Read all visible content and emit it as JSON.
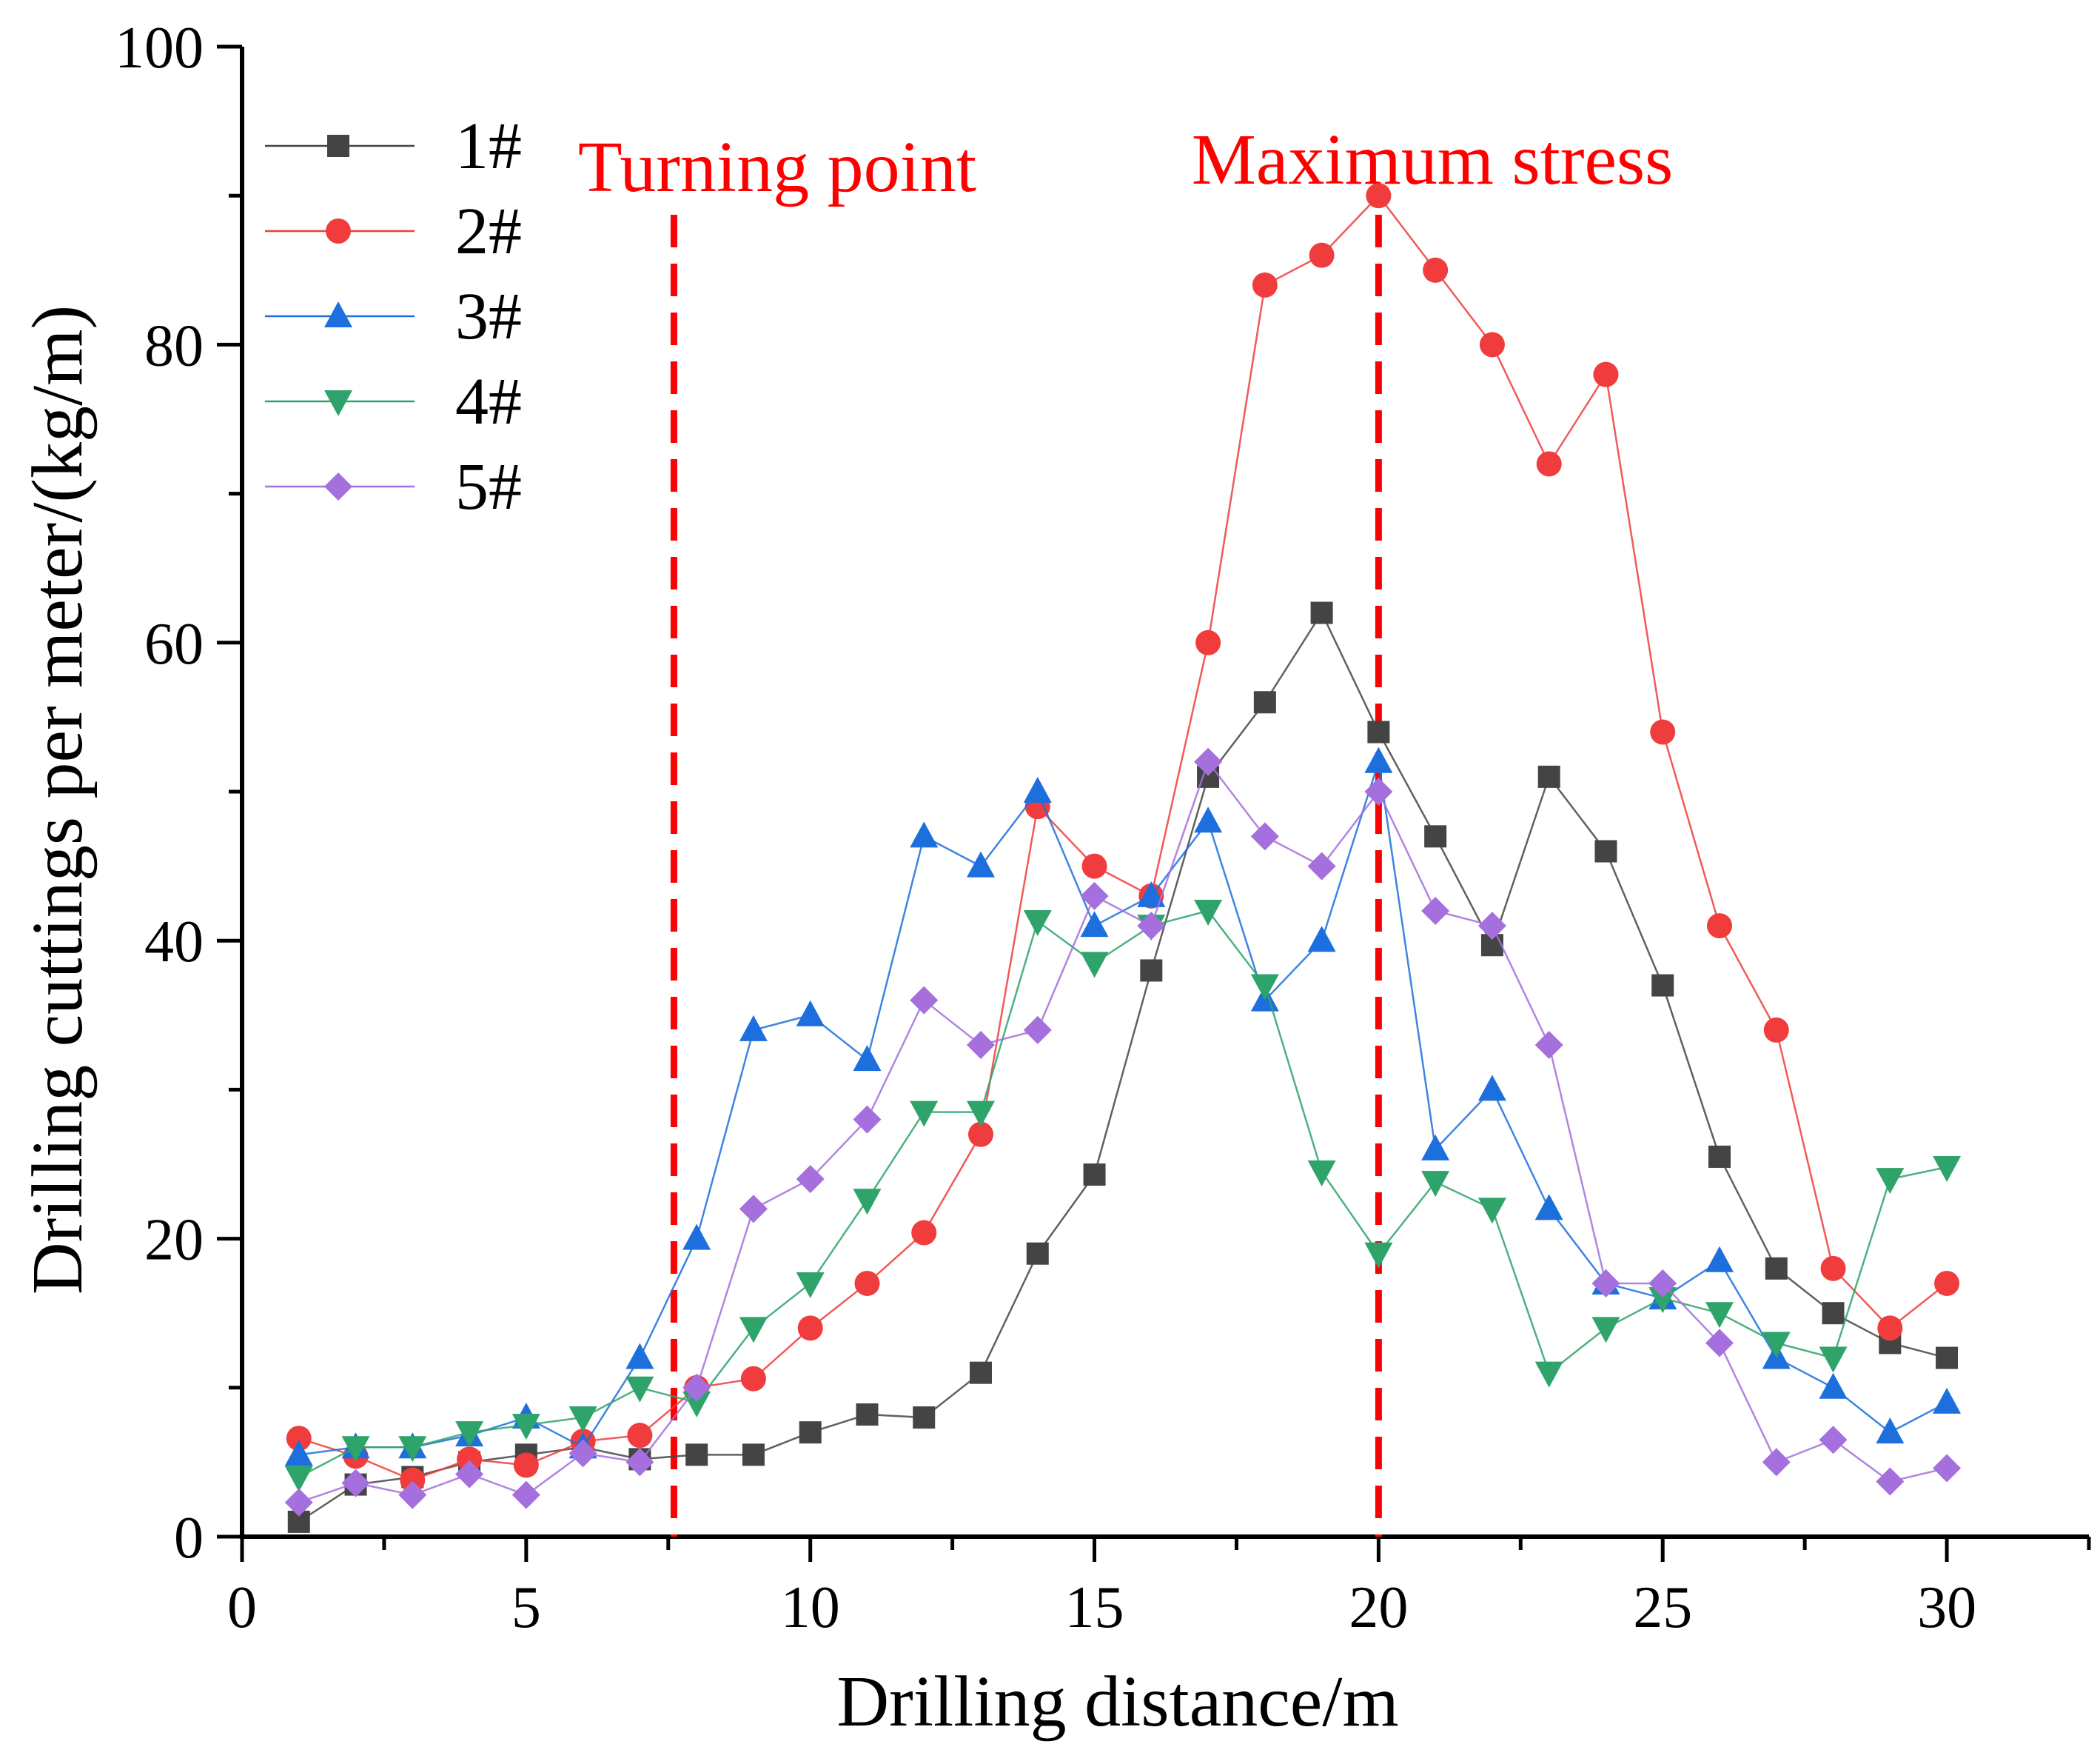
{
  "chart_data": {
    "type": "line",
    "title": "",
    "xlabel": "Drilling distance/m",
    "ylabel": "Drilling cuttings per meter/(kg/m)",
    "xlim": [
      0,
      32.5
    ],
    "ylim": [
      0,
      100
    ],
    "xticks": [
      0,
      5,
      10,
      15,
      20,
      25,
      30
    ],
    "yticks": [
      0,
      20,
      40,
      60,
      80,
      100
    ],
    "x_tick_labels": [
      "0",
      "5",
      "10",
      "15",
      "20",
      "25",
      "30"
    ],
    "y_tick_labels": [
      "0",
      "20",
      "40",
      "60",
      "80",
      "100"
    ],
    "grid": false,
    "legend_position": "top-left",
    "x": [
      1,
      2,
      3,
      4,
      5,
      6,
      7,
      8,
      9,
      10,
      11,
      12,
      13,
      14,
      15,
      16,
      17,
      18,
      19,
      20,
      21,
      22,
      23,
      24,
      25,
      26,
      27,
      28,
      29,
      30
    ],
    "series": [
      {
        "name": "1#",
        "color": "#444444",
        "marker": "square",
        "values": [
          1,
          3.5,
          4,
          5,
          5.5,
          6,
          5.2,
          5.5,
          5.5,
          7,
          8.2,
          8,
          11,
          19,
          24.3,
          38,
          51,
          56,
          62,
          54,
          47,
          39.7,
          51,
          46,
          37,
          25.5,
          18,
          15,
          13,
          12
        ]
      },
      {
        "name": "2#",
        "color": "#f03c3c",
        "marker": "circle",
        "values": [
          6.6,
          5.4,
          3.8,
          5.2,
          4.8,
          6.4,
          6.8,
          10,
          10.6,
          14,
          17,
          20.4,
          27,
          49,
          45,
          43,
          60,
          84,
          86,
          90,
          85,
          80,
          72,
          78,
          54,
          41,
          34,
          18,
          14,
          17
        ]
      },
      {
        "name": "3#",
        "color": "#1c6fdc",
        "marker": "triangle-up",
        "values": [
          5.5,
          6,
          6,
          6.8,
          8,
          6,
          12,
          20,
          34,
          35,
          32,
          47,
          45,
          50,
          41,
          43,
          48,
          36,
          40,
          52,
          26,
          30,
          22,
          17,
          16,
          18.5,
          12,
          10,
          7,
          9
        ]
      },
      {
        "name": "4#",
        "color": "#2ea36a",
        "marker": "triangle-down",
        "values": [
          4,
          6,
          6,
          7,
          7.5,
          8,
          10,
          9,
          14,
          17,
          22.6,
          28.5,
          28.5,
          41.3,
          38.5,
          41,
          42,
          37,
          24.5,
          19,
          23.8,
          22,
          11,
          14,
          16,
          15,
          13,
          12,
          24,
          24.8
        ]
      },
      {
        "name": "5#",
        "color": "#a56fdd",
        "marker": "diamond",
        "values": [
          2.3,
          3.6,
          2.8,
          4.2,
          2.8,
          5.6,
          5,
          10,
          22,
          24,
          28,
          36,
          33,
          34,
          43,
          41,
          52,
          47,
          45,
          50,
          42,
          41,
          33,
          17,
          17,
          13,
          5,
          6.5,
          3.7,
          4.6
        ]
      }
    ],
    "annotations": [
      {
        "text": "Turning point",
        "x": 7.6,
        "color": "#ff0000",
        "style": "dashed vertical line"
      },
      {
        "text": "Maximum stress",
        "x": 20,
        "color": "#ff0000",
        "style": "dashed vertical line"
      }
    ]
  }
}
